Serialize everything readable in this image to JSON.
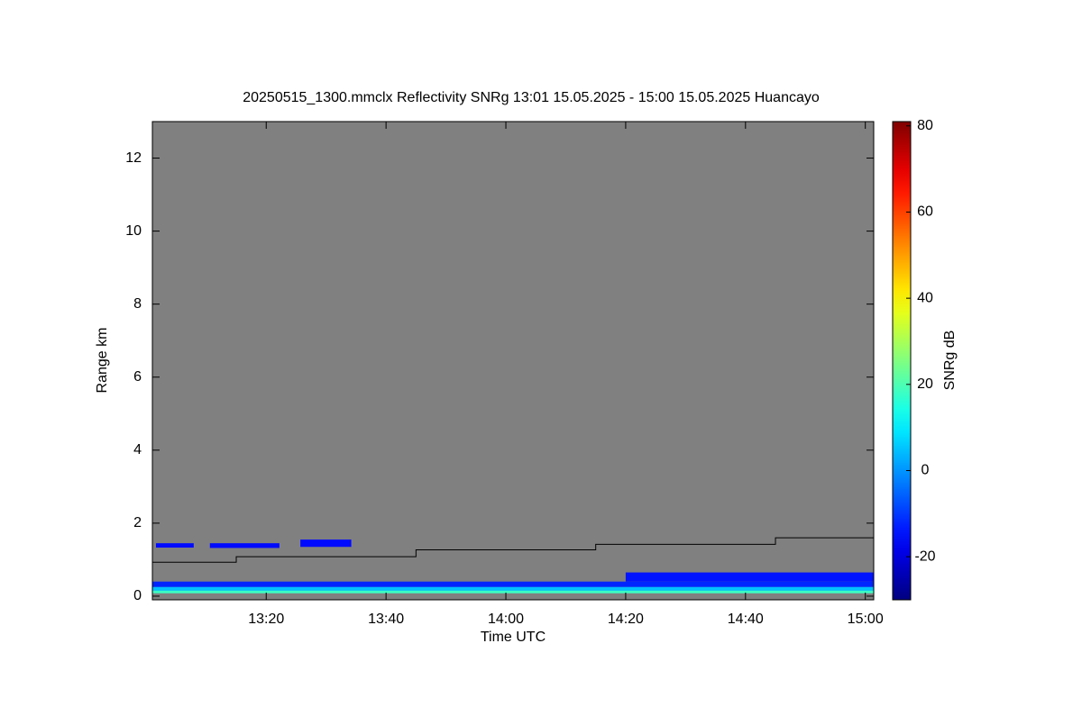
{
  "chart_data": {
    "type": "heatmap",
    "title": "20250515_1300.mmclx Reflectivity SNRg   13:01 15.05.2025 - 15:00 15.05.2025 Huancayo",
    "xlabel": "Time UTC",
    "ylabel": "Range km",
    "xlim": [
      781,
      901.4
    ],
    "xticks": [
      {
        "value": 800,
        "label": "13:20"
      },
      {
        "value": 820,
        "label": "13:40"
      },
      {
        "value": 840,
        "label": "14:00"
      },
      {
        "value": 860,
        "label": "14:20"
      },
      {
        "value": 880,
        "label": "14:40"
      },
      {
        "value": 900,
        "label": "15:00"
      }
    ],
    "ylim": [
      -0.1,
      13
    ],
    "yticks": [
      0,
      2,
      4,
      6,
      8,
      10,
      12
    ],
    "background": "#808080",
    "colorbar": {
      "label": "SNRg dB",
      "lim": [
        -30,
        81
      ],
      "ticks": [
        -20,
        0,
        20,
        40,
        60,
        80
      ],
      "colormap": "jet"
    },
    "cells": [
      {
        "x": [
          781.6,
          787.9
        ],
        "y": [
          1.33,
          1.45
        ],
        "value": -15
      },
      {
        "x": [
          790.6,
          802.2
        ],
        "y": [
          1.32,
          1.45
        ],
        "value": -15
      },
      {
        "x": [
          805.7,
          814.2
        ],
        "y": [
          1.35,
          1.55
        ],
        "value": -15
      },
      {
        "x": [
          781,
          901.4
        ],
        "y": [
          0.25,
          0.4
        ],
        "value": -12
      },
      {
        "x": [
          860,
          901.4
        ],
        "y": [
          0.4,
          0.65
        ],
        "value": -14
      },
      {
        "x": [
          781,
          901.4
        ],
        "y": [
          0.15,
          0.25
        ],
        "value": 5
      },
      {
        "x": [
          781,
          901.4
        ],
        "y": [
          0.08,
          0.15
        ],
        "value": 18
      }
    ],
    "line": {
      "color": "#000000",
      "x": [
        781,
        795,
        795,
        825,
        825,
        855,
        855,
        885,
        885,
        901.4
      ],
      "values": [
        0.93,
        0.93,
        1.08,
        1.08,
        1.27,
        1.27,
        1.42,
        1.42,
        1.6,
        1.6
      ]
    }
  }
}
